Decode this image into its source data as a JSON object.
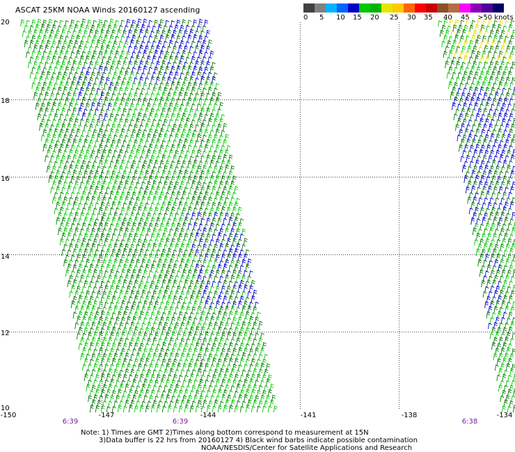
{
  "title": "ASCAT 25KM NOAA Winds 20160127 ascending",
  "colorbar": {
    "colors": [
      "#404040",
      "#808080",
      "#00b4ff",
      "#0064ff",
      "#0000c8",
      "#00c800",
      "#00b400",
      "#e6e600",
      "#ffc800",
      "#ff6400",
      "#ff0000",
      "#c80000",
      "#8c5028",
      "#b46e46",
      "#ff00ff",
      "#8c00b4",
      "#50009b",
      "#000064"
    ],
    "labels": [
      "0",
      "5",
      "10",
      "15",
      "20",
      "25",
      "30",
      "35",
      "40",
      "45",
      ">50 knots"
    ]
  },
  "axes": {
    "lat_labels": [
      "20",
      "18",
      "16",
      "14",
      "12",
      "10"
    ],
    "lon_labels": [
      "-150",
      "-147",
      "-144",
      "-141",
      "-138",
      "-134"
    ],
    "lat_range": [
      10,
      20
    ],
    "lon_range": [
      -150,
      -134.5
    ]
  },
  "times": [
    "6:39",
    "6:39",
    "6:38"
  ],
  "notes": [
    "Note: 1) Times are GMT 2)Times along bottom correspond to measurement at 15N",
    "3)Data buffer is 22 hrs from 20160127 4) Black wind barbs indicate possible contamination",
    "NOAA/NESDIS/Center for Satellite Applications and Research"
  ],
  "barb_colors": {
    "light": "#00c800",
    "dark": "#007800",
    "strong": "#0000cd",
    "gale": "#e6dc00"
  }
}
